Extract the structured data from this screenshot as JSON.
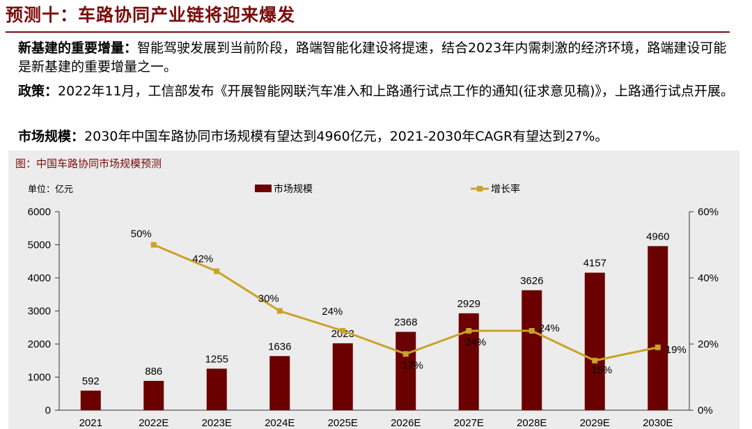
{
  "header": {
    "title": "预测十：车路协同产业链将迎来爆发"
  },
  "paragraphs": {
    "p1_label": "新基建的重要增量：",
    "p1_text": "智能驾驶发展到当前阶段，路端智能化建设将提速，结合2023年内需刺激的经济环境，路端建设可能是新基建的重要增量之一。",
    "p2_label": "政策：",
    "p2_text": "2022年11月，工信部发布《开展智能网联汽车准入和上路通行试点工作的通知(征求意见稿)》，上路通行试点开展。",
    "p3_label": "市场规模：",
    "p3_text": "2030年中国车路协同市场规模有望达到4960亿元，2021-2030年CAGR有望达到27%。"
  },
  "chart_data": {
    "type": "bar",
    "title": "图：中国车路协同市场规模预测",
    "unit_label": "单位：亿元",
    "categories": [
      "2021",
      "2022E",
      "2023E",
      "2024E",
      "2025E",
      "2026E",
      "2027E",
      "2028E",
      "2029E",
      "2030E"
    ],
    "series": [
      {
        "name": "市场规模",
        "type": "bar",
        "axis": "left",
        "color": "#6b0000",
        "values": [
          592,
          886,
          1255,
          1636,
          2023,
          2368,
          2929,
          3626,
          4157,
          4960
        ],
        "labels": [
          "592",
          "886",
          "1255",
          "1636",
          "2023",
          "2368",
          "2929",
          "3626",
          "4157",
          "4960"
        ]
      },
      {
        "name": "增长率",
        "type": "line",
        "axis": "right",
        "color": "#c9a227",
        "values": [
          null,
          50,
          42,
          30,
          24,
          17,
          24,
          24,
          15,
          19
        ],
        "labels": [
          "",
          "50%",
          "42%",
          "30%",
          "24%",
          "17%",
          "24%",
          "24%",
          "15%",
          "19%"
        ]
      }
    ],
    "y_left": {
      "min": 0,
      "max": 6000,
      "ticks": [
        "0",
        "1000",
        "2000",
        "3000",
        "4000",
        "5000",
        "6000"
      ]
    },
    "y_right": {
      "min": 0,
      "max": 60,
      "ticks": [
        "0%",
        "20%",
        "40%",
        "60%"
      ]
    },
    "grid": false,
    "legend_position": "top-center"
  }
}
